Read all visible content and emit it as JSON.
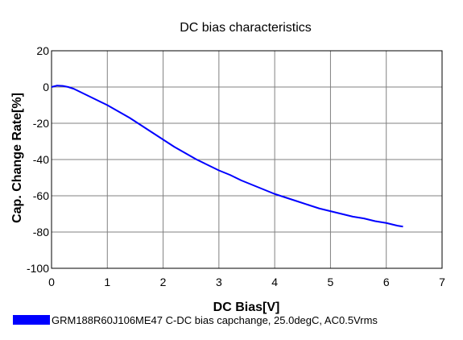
{
  "chart_data": {
    "type": "line",
    "title": "DC bias characteristics",
    "xlabel": "DC Bias[V]",
    "ylabel": "Cap. Change Rate[%]",
    "xlim": [
      0,
      7
    ],
    "ylim": [
      -100,
      20
    ],
    "x_ticks": [
      0,
      1,
      2,
      3,
      4,
      5,
      6,
      7
    ],
    "y_ticks": [
      -100,
      -80,
      -60,
      -40,
      -20,
      0,
      20
    ],
    "grid": true,
    "legend_position": "bottom-left",
    "series": [
      {
        "name": "GRM188R60J106ME47 C-DC bias capchange, 25.0degC, AC0.5Vrms",
        "color": "#0000ff",
        "x": [
          0,
          0.1,
          0.2,
          0.3,
          0.4,
          0.5,
          0.6,
          0.7,
          0.8,
          0.9,
          1.0,
          1.2,
          1.4,
          1.6,
          1.8,
          2.0,
          2.2,
          2.4,
          2.6,
          2.8,
          3.0,
          3.2,
          3.4,
          3.6,
          3.8,
          4.0,
          4.2,
          4.4,
          4.6,
          4.8,
          5.0,
          5.2,
          5.4,
          5.6,
          5.8,
          6.0,
          6.2,
          6.3
        ],
        "y": [
          0,
          0.8,
          0.6,
          0,
          -1,
          -2.5,
          -4,
          -5.5,
          -7,
          -8.5,
          -10,
          -13.5,
          -17,
          -21,
          -25,
          -29,
          -33,
          -36.5,
          -40,
          -43,
          -46,
          -48.5,
          -51.5,
          -54,
          -56.5,
          -59,
          -61,
          -63,
          -65,
          -67,
          -68.5,
          -70,
          -71.5,
          -72.5,
          -74,
          -75,
          -76.5,
          -77
        ]
      }
    ]
  }
}
